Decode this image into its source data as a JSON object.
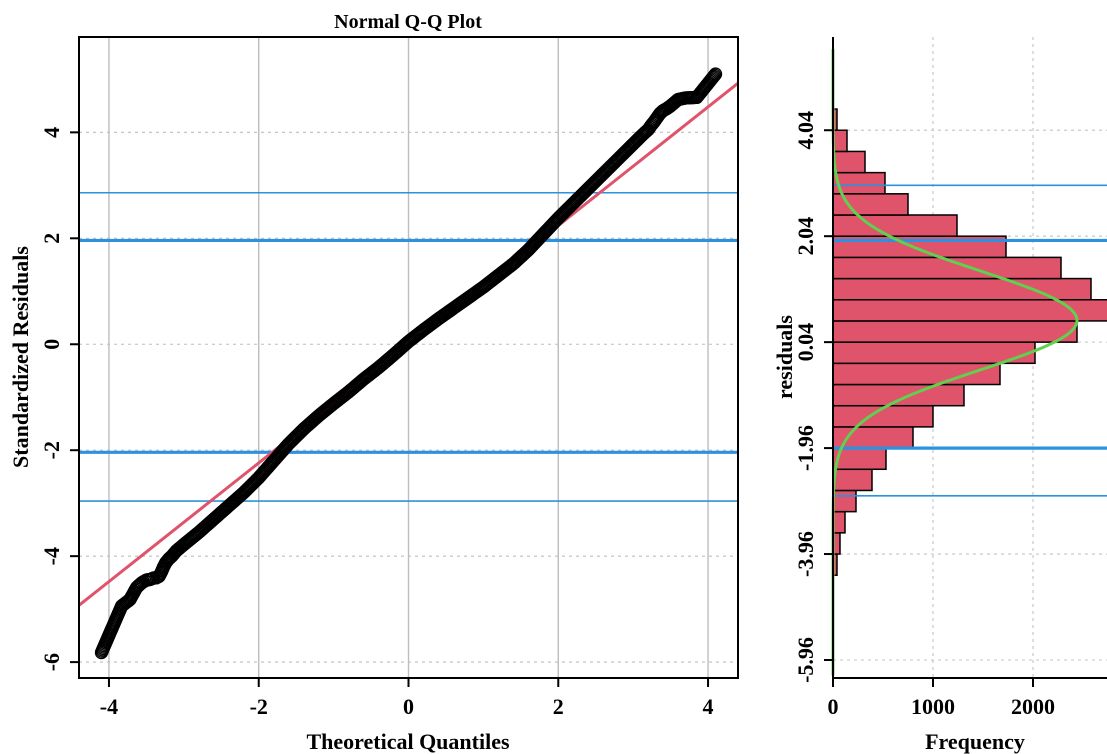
{
  "chart_data": [
    {
      "type": "scatter",
      "title": "Normal Q-Q Plot",
      "xlabel": "Theoretical Quantiles",
      "ylabel": "Standardized Residuals",
      "xlim": [
        -4.4,
        4.4
      ],
      "ylim": [
        -6.3,
        5.8
      ],
      "x_ticks": [
        -4,
        -2,
        0,
        2,
        4
      ],
      "x_tick_labels": [
        "-4",
        "-2",
        "0",
        "2",
        "4"
      ],
      "y_ticks": [
        -6,
        -4,
        -2,
        0,
        2,
        4
      ],
      "y_tick_labels": [
        "-6",
        "-4",
        "-2",
        "0",
        "2",
        "4"
      ],
      "grid": true,
      "reference_line": {
        "intercept": 0.0,
        "slope": 1.12,
        "color": "#df536b"
      },
      "hlines_thick": [
        1.96,
        -2.04
      ],
      "hlines_thin": [
        2.86,
        -2.96
      ],
      "hline_color": "#2c92e0",
      "point_color": "#000000",
      "points": [
        [
          -4.1,
          -5.82
        ],
        [
          -3.83,
          -4.94
        ],
        [
          -3.72,
          -4.82
        ],
        [
          -3.63,
          -4.59
        ],
        [
          -3.56,
          -4.5
        ],
        [
          -3.5,
          -4.45
        ],
        [
          -3.45,
          -4.44
        ],
        [
          -3.4,
          -4.41
        ],
        [
          -3.37,
          -4.41
        ],
        [
          -3.33,
          -4.38
        ],
        [
          -3.3,
          -4.3
        ],
        [
          -3.27,
          -4.2
        ],
        [
          -3.24,
          -4.12
        ],
        [
          -3.2,
          -4.05
        ],
        [
          -3.16,
          -4.0
        ],
        [
          -3.1,
          -3.9
        ],
        [
          -3.0,
          -3.78
        ],
        [
          -2.8,
          -3.55
        ],
        [
          -2.6,
          -3.3
        ],
        [
          -2.4,
          -3.05
        ],
        [
          -2.2,
          -2.8
        ],
        [
          -2.0,
          -2.52
        ],
        [
          -1.8,
          -2.2
        ],
        [
          -1.6,
          -1.88
        ],
        [
          -1.4,
          -1.6
        ],
        [
          -1.2,
          -1.35
        ],
        [
          -1.0,
          -1.12
        ],
        [
          -0.8,
          -0.9
        ],
        [
          -0.6,
          -0.66
        ],
        [
          -0.4,
          -0.44
        ],
        [
          -0.2,
          -0.2
        ],
        [
          0.0,
          0.05
        ],
        [
          0.2,
          0.27
        ],
        [
          0.4,
          0.48
        ],
        [
          0.6,
          0.68
        ],
        [
          0.8,
          0.88
        ],
        [
          1.0,
          1.08
        ],
        [
          1.2,
          1.3
        ],
        [
          1.4,
          1.52
        ],
        [
          1.6,
          1.78
        ],
        [
          1.8,
          2.08
        ],
        [
          2.0,
          2.38
        ],
        [
          2.2,
          2.66
        ],
        [
          2.4,
          2.94
        ],
        [
          2.6,
          3.22
        ],
        [
          2.8,
          3.5
        ],
        [
          3.0,
          3.78
        ],
        [
          3.1,
          3.92
        ],
        [
          3.16,
          4.0
        ],
        [
          3.2,
          4.05
        ],
        [
          3.24,
          4.13
        ],
        [
          3.28,
          4.2
        ],
        [
          3.32,
          4.28
        ],
        [
          3.36,
          4.36
        ],
        [
          3.4,
          4.41
        ],
        [
          3.45,
          4.45
        ],
        [
          3.5,
          4.5
        ],
        [
          3.6,
          4.62
        ],
        [
          3.7,
          4.65
        ],
        [
          3.85,
          4.66
        ],
        [
          4.1,
          5.1
        ]
      ]
    },
    {
      "type": "bar",
      "orientation": "horizontal",
      "xlabel": "Frequency",
      "ylabel": "residuals",
      "xlim": [
        0,
        2800
      ],
      "ylim": [
        -6.3,
        5.8
      ],
      "x_ticks": [
        0,
        1000,
        2000
      ],
      "x_tick_labels": [
        "0",
        "1000",
        "2000"
      ],
      "y_ticks": [
        -5.96,
        -3.96,
        -1.96,
        0.04,
        2.04,
        4.04
      ],
      "y_tick_labels": [
        "-5.96",
        "-3.96",
        "-1.96",
        "0.04",
        "2.04",
        "4.04"
      ],
      "grid": true,
      "bar_color": "#df536b",
      "bin_width": 0.4,
      "bins": [
        [
          -4.36,
          -3.96,
          40
        ],
        [
          -3.96,
          -3.56,
          70
        ],
        [
          -3.56,
          -3.16,
          120
        ],
        [
          -3.16,
          -2.76,
          230
        ],
        [
          -2.76,
          -2.36,
          390
        ],
        [
          -2.36,
          -1.96,
          530
        ],
        [
          -1.96,
          -1.56,
          800
        ],
        [
          -1.56,
          -1.16,
          1000
        ],
        [
          -1.16,
          -0.76,
          1310
        ],
        [
          -0.76,
          -0.36,
          1670
        ],
        [
          -0.36,
          0.04,
          2020
        ],
        [
          0.04,
          0.44,
          2440
        ],
        [
          0.44,
          0.84,
          2800
        ],
        [
          0.84,
          1.24,
          2580
        ],
        [
          1.24,
          1.64,
          2280
        ],
        [
          1.64,
          2.04,
          1730
        ],
        [
          2.04,
          2.44,
          1240
        ],
        [
          2.44,
          2.84,
          750
        ],
        [
          2.84,
          3.24,
          520
        ],
        [
          3.24,
          3.64,
          320
        ],
        [
          3.64,
          4.04,
          140
        ],
        [
          4.04,
          4.44,
          40
        ]
      ],
      "density_curve": {
        "color": "#61d04f",
        "mean": 0.45,
        "sd": 0.93,
        "peak_count": 2440
      },
      "hlines_thick": [
        1.96,
        -1.96
      ],
      "hlines_thin": [
        3.0,
        -2.86
      ],
      "hline_color": "#2c92e0"
    }
  ]
}
